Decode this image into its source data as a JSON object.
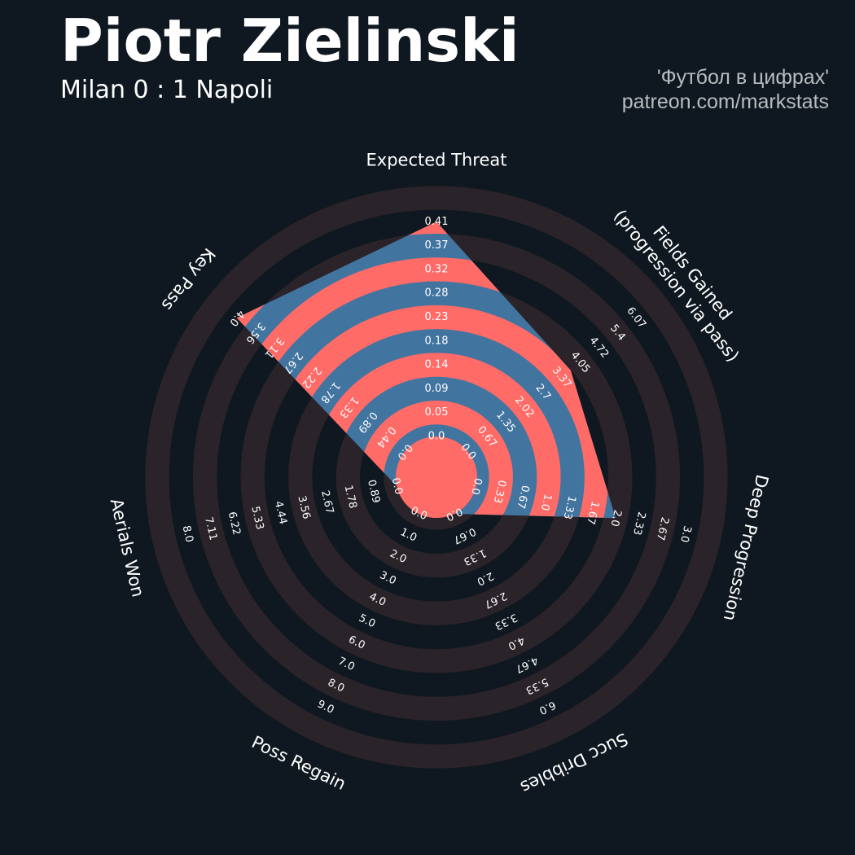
{
  "header": {
    "title": "Piotr Zielinski",
    "subtitle": "Milan 0 : 1 Napoli",
    "credit_line1": "'Футбол в цифрах'",
    "credit_line2": "patreon.com/markstats"
  },
  "colors": {
    "background": "#0f1820",
    "ring_dark": "#2a2329",
    "ring_accent": "#ff6b67",
    "player_fill": "#4274a0",
    "text": "#ffffff",
    "credit": "#b9bcc0"
  },
  "chart_data": {
    "type": "radar",
    "player": "Piotr Zielinski",
    "axes": [
      {
        "label": "Expected Threat",
        "value": 0.41,
        "ticks": [
          "0.0",
          "0.05",
          "0.09",
          "0.14",
          "0.18",
          "0.23",
          "0.28",
          "0.32",
          "0.37",
          "0.41"
        ]
      },
      {
        "label": "Fields Gained\n(progression via pass)",
        "value": 3.7,
        "ticks": [
          "0.0",
          "0.67",
          "1.35",
          "2.02",
          "2.7",
          "3.37",
          "4.05",
          "4.72",
          "5.4",
          "6.07"
        ]
      },
      {
        "label": "Deep Progression",
        "value": 2.0,
        "ticks": [
          "0.0",
          "0.33",
          "0.67",
          "1.0",
          "1.33",
          "1.67",
          "2.0",
          "2.33",
          "2.67",
          "3.0"
        ]
      },
      {
        "label": "Succ Dribbles",
        "value": 0.0,
        "ticks": [
          "0.0",
          "0.67",
          "1.33",
          "2.0",
          "2.67",
          "3.33",
          "4.0",
          "4.67",
          "5.33",
          "6.0"
        ]
      },
      {
        "label": "Poss Regain",
        "value": 0.0,
        "ticks": [
          "0.0",
          "1.0",
          "2.0",
          "3.0",
          "4.0",
          "5.0",
          "6.0",
          "7.0",
          "8.0",
          "9.0"
        ]
      },
      {
        "label": "Aerials Won",
        "value": 0.0,
        "ticks": [
          "0.0",
          "0.89",
          "1.78",
          "2.67",
          "3.56",
          "4.44",
          "5.33",
          "6.22",
          "7.11",
          "8.0"
        ]
      },
      {
        "label": "Key Pass",
        "value": 4.0,
        "ticks": [
          "0.0",
          "0.44",
          "0.89",
          "1.33",
          "1.78",
          "2.22",
          "2.67",
          "3.11",
          "3.56",
          "4.0"
        ]
      }
    ]
  }
}
